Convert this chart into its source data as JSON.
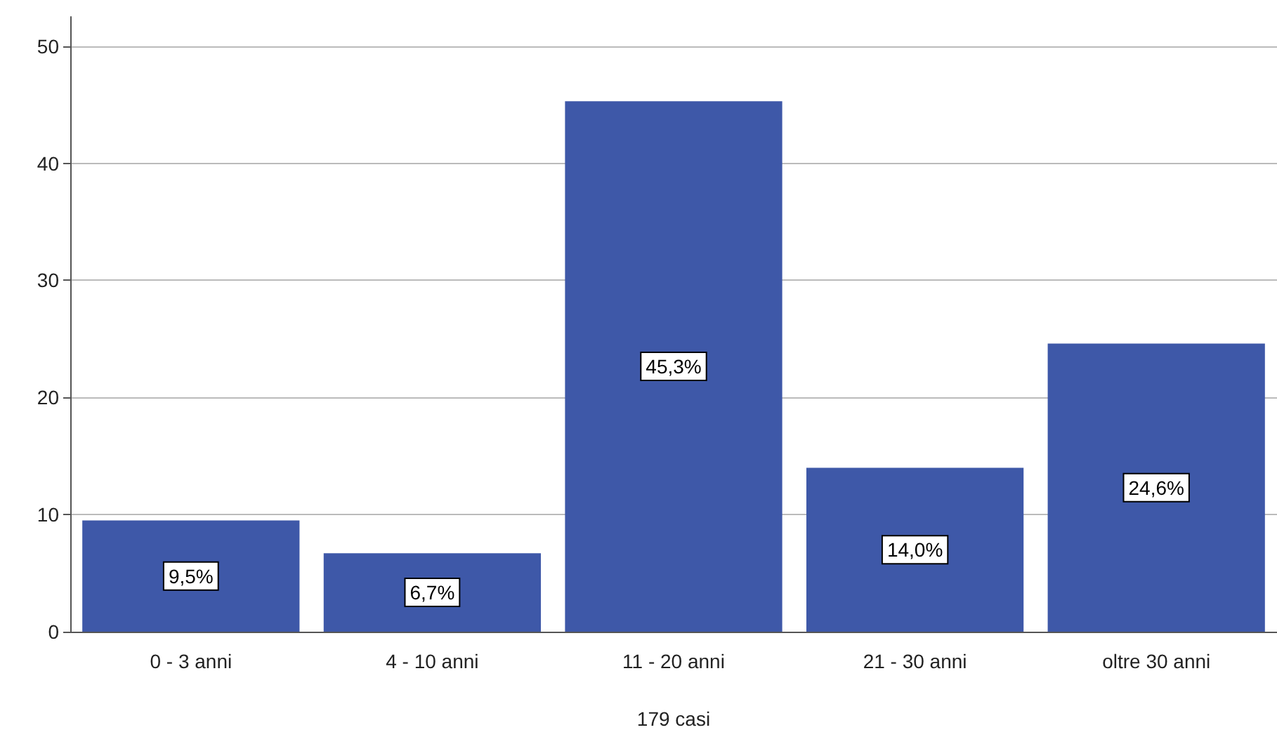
{
  "chart_data": {
    "type": "bar",
    "xlabel": "179 casi",
    "categories": [
      "0 - 3 anni",
      "4 - 10 anni",
      "11 - 20 anni",
      "21 - 30 anni",
      "oltre 30 anni"
    ],
    "values": [
      9.5,
      6.7,
      45.3,
      14.0,
      24.6
    ],
    "value_labels": [
      "9,5%",
      "6,7%",
      "45,3%",
      "14,0%",
      "24,6%"
    ],
    "color": "#3e58a8",
    "ylim": [
      0,
      52.5
    ],
    "yticks": [
      0,
      10,
      20,
      30,
      40,
      50
    ],
    "grid": "y"
  }
}
